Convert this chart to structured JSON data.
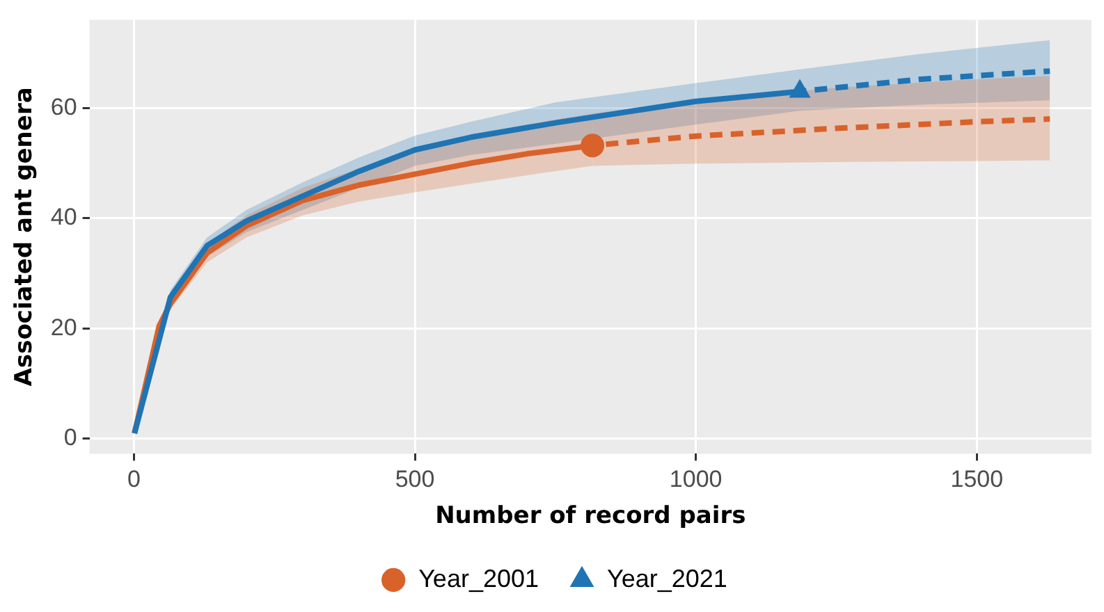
{
  "chart_data": {
    "type": "line",
    "xlabel": "Number of record pairs",
    "ylabel": "Associated ant genera",
    "xlim": [
      -79,
      1704
    ],
    "ylim": [
      -2.7,
      76
    ],
    "xticks": [
      0,
      500,
      1000,
      1500
    ],
    "yticks": [
      0,
      20,
      40,
      60
    ],
    "grid": true,
    "legend": "bottom",
    "series": [
      {
        "type": "scatter",
        "color": "#d9622b",
        "marker": "circle",
        "x": [
          816
        ],
        "values": [
          53.2
        ]
      },
      {
        "type": "scatter",
        "color": "#1f74b4",
        "marker": "triangle",
        "x": [
          1185
        ],
        "values": [
          63
        ]
      },
      {
        "name": "Year_2001",
        "color": "#d9622b",
        "line_style": "solid",
        "x": [
          1,
          45,
          65,
          130,
          200,
          300,
          400,
          500,
          600,
          700,
          816
        ],
        "values": [
          1,
          20.5,
          24.5,
          33.7,
          38.6,
          43.2,
          46,
          48,
          50,
          51.7,
          53.2
        ],
        "lower": [
          1,
          19.5,
          23.5,
          32,
          36.5,
          40.5,
          43,
          44.7,
          46.3,
          47.8,
          49.5
        ],
        "upper": [
          1,
          21.5,
          26,
          35.3,
          40.5,
          45.5,
          49,
          52,
          54.5,
          57,
          59
        ]
      },
      {
        "color": "#d9622b",
        "line_style": "dashed",
        "x": [
          816,
          1000,
          1250,
          1500,
          1630
        ],
        "values": [
          53.2,
          54.9,
          56.3,
          57.5,
          58
        ],
        "lower": [
          49.5,
          49.9,
          50.2,
          50.4,
          50.5
        ],
        "upper": [
          59,
          61.3,
          63.7,
          65.2,
          65.8
        ]
      },
      {
        "name": "Year_2021",
        "color": "#1f74b4",
        "line_style": "solid",
        "x": [
          1,
          65,
          130,
          200,
          300,
          400,
          500,
          600,
          750,
          1000,
          1185
        ],
        "values": [
          1,
          25.7,
          35,
          39.5,
          44,
          48.5,
          52.4,
          54.7,
          57.3,
          61.2,
          63
        ],
        "lower": [
          1,
          24.5,
          33,
          37.5,
          41.5,
          45.5,
          49.5,
          51.5,
          53.5,
          57,
          59.5
        ],
        "upper": [
          1,
          27,
          36.5,
          41.5,
          46.5,
          51,
          55,
          57.5,
          61,
          64.5,
          67
        ]
      },
      {
        "color": "#1f74b4",
        "line_style": "dashed",
        "x": [
          1185,
          1400,
          1630
        ],
        "values": [
          63,
          65.2,
          66.7
        ],
        "lower": [
          59.5,
          60.6,
          61.4
        ],
        "upper": [
          67,
          69.8,
          72.3
        ]
      }
    ]
  }
}
